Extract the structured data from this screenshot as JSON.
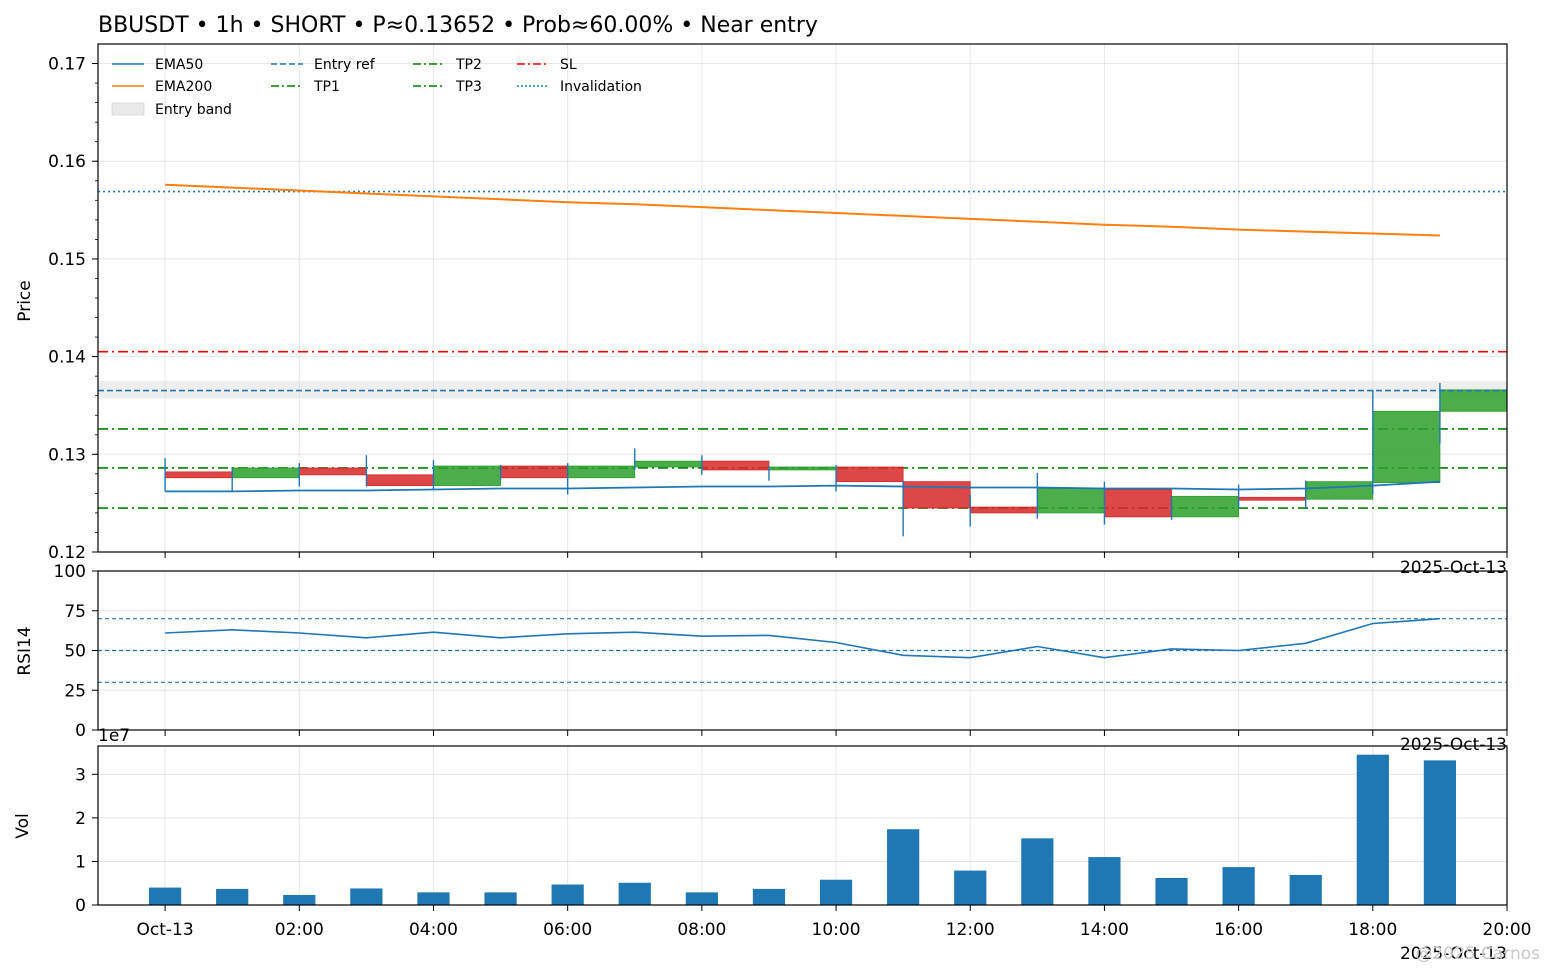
{
  "chart_data": {
    "type": "candlestick",
    "title": "BBUSDT • 1h • SHORT • P≈0.13652 • Prob≈60.00% • Near entry",
    "x": {
      "start": "2025-10-13T00:00",
      "end": "2025-10-13T20:00",
      "ticks": [
        "Oct-13",
        "02:00",
        "04:00",
        "06:00",
        "08:00",
        "10:00",
        "12:00",
        "14:00",
        "16:00",
        "18:00",
        "20:00"
      ],
      "date_label": "2025-Oct-13"
    },
    "price_panel": {
      "ylabel": "Price",
      "ylim": [
        0.12,
        0.172
      ],
      "yticks": [
        0.12,
        0.13,
        0.14,
        0.15,
        0.16,
        0.17
      ],
      "ytick_labels": [
        "0.12",
        "0.13",
        "0.14",
        "0.15",
        "0.16",
        "0.17"
      ],
      "candles": [
        {
          "time": "2025-10-13T00:00",
          "open": 0.1282,
          "high": 0.1296,
          "low": 0.1262,
          "close": 0.1276
        },
        {
          "time": "2025-10-13T01:00",
          "open": 0.1276,
          "high": 0.1287,
          "low": 0.1262,
          "close": 0.1286
        },
        {
          "time": "2025-10-13T02:00",
          "open": 0.1286,
          "high": 0.1291,
          "low": 0.1267,
          "close": 0.1279
        },
        {
          "time": "2025-10-13T03:00",
          "open": 0.1279,
          "high": 0.1299,
          "low": 0.1267,
          "close": 0.1268
        },
        {
          "time": "2025-10-13T04:00",
          "open": 0.1268,
          "high": 0.1294,
          "low": 0.1264,
          "close": 0.1288
        },
        {
          "time": "2025-10-13T05:00",
          "open": 0.1288,
          "high": 0.1289,
          "low": 0.1274,
          "close": 0.1276
        },
        {
          "time": "2025-10-13T06:00",
          "open": 0.1276,
          "high": 0.1291,
          "low": 0.1259,
          "close": 0.1288
        },
        {
          "time": "2025-10-13T07:00",
          "open": 0.1287,
          "high": 0.1306,
          "low": 0.1284,
          "close": 0.1293
        },
        {
          "time": "2025-10-13T08:00",
          "open": 0.1293,
          "high": 0.1299,
          "low": 0.1279,
          "close": 0.1284
        },
        {
          "time": "2025-10-13T09:00",
          "open": 0.1284,
          "high": 0.1288,
          "low": 0.1273,
          "close": 0.1287
        },
        {
          "time": "2025-10-13T10:00",
          "open": 0.1287,
          "high": 0.1289,
          "low": 0.1262,
          "close": 0.1272
        },
        {
          "time": "2025-10-13T11:00",
          "open": 0.1272,
          "high": 0.1273,
          "low": 0.1216,
          "close": 0.1245
        },
        {
          "time": "2025-10-13T12:00",
          "open": 0.1246,
          "high": 0.1259,
          "low": 0.1226,
          "close": 0.124
        },
        {
          "time": "2025-10-13T13:00",
          "open": 0.124,
          "high": 0.1281,
          "low": 0.1234,
          "close": 0.1265
        },
        {
          "time": "2025-10-13T14:00",
          "open": 0.1264,
          "high": 0.1272,
          "low": 0.1228,
          "close": 0.1236
        },
        {
          "time": "2025-10-13T15:00",
          "open": 0.1236,
          "high": 0.1257,
          "low": 0.1233,
          "close": 0.1257
        },
        {
          "time": "2025-10-13T16:00",
          "open": 0.1256,
          "high": 0.1269,
          "low": 0.1244,
          "close": 0.1253
        },
        {
          "time": "2025-10-13T17:00",
          "open": 0.1254,
          "high": 0.1273,
          "low": 0.1244,
          "close": 0.1272
        },
        {
          "time": "2025-10-13T18:00",
          "open": 0.1271,
          "high": 0.1366,
          "low": 0.1259,
          "close": 0.1344
        },
        {
          "time": "2025-10-13T19:00",
          "open": 0.1344,
          "high": 0.1373,
          "low": 0.1311,
          "close": 0.1366
        }
      ],
      "ema50": [
        0.1262,
        0.1262,
        0.1263,
        0.1263,
        0.1264,
        0.1265,
        0.1265,
        0.1266,
        0.1267,
        0.1267,
        0.1268,
        0.1267,
        0.1266,
        0.1266,
        0.1265,
        0.1265,
        0.1264,
        0.1265,
        0.1268,
        0.1272
      ],
      "ema200": [
        0.1576,
        0.1573,
        0.157,
        0.1567,
        0.1564,
        0.1561,
        0.1558,
        0.1556,
        0.1553,
        0.155,
        0.1547,
        0.1544,
        0.1541,
        0.1538,
        0.1535,
        0.1533,
        0.153,
        0.1528,
        0.1526,
        0.1524
      ],
      "levels": {
        "entry_ref": 0.13652,
        "entry_band": [
          0.1357,
          0.1375
        ],
        "sl": 0.1405,
        "tp1": 0.1245,
        "tp2": 0.1326,
        "tp3": 0.1286,
        "invalidation": 0.1569
      },
      "legend": {
        "placement": "upper-left",
        "entries": [
          "EMA50",
          "EMA200",
          "Entry band",
          "Entry ref",
          "TP1",
          "TP2",
          "TP3",
          "SL",
          "Invalidation"
        ]
      }
    },
    "rsi_panel": {
      "ylabel": "RSI14",
      "ylim": [
        0,
        100
      ],
      "yticks": [
        0,
        25,
        50,
        75,
        100
      ],
      "ytick_labels": [
        "0",
        "25",
        "50",
        "75",
        "100"
      ],
      "reference_lines": [
        70,
        50,
        30
      ],
      "values": [
        61,
        63,
        61,
        58,
        61.5,
        58,
        60.5,
        61.5,
        59,
        59.5,
        55,
        47,
        45.5,
        52.5,
        45.5,
        51,
        50,
        54.5,
        67,
        70
      ]
    },
    "volume_panel": {
      "ylabel": "Vol",
      "offset_label": "1e7",
      "ylim": [
        0,
        3.65
      ],
      "yticks": [
        0,
        1,
        2,
        3
      ],
      "ytick_labels": [
        "0",
        "1",
        "2",
        "3"
      ],
      "values": [
        0.4,
        0.37,
        0.23,
        0.38,
        0.29,
        0.29,
        0.47,
        0.51,
        0.29,
        0.37,
        0.58,
        1.74,
        0.79,
        1.53,
        1.1,
        0.62,
        0.87,
        0.69,
        3.45,
        3.32
      ]
    },
    "grid": true,
    "colors": {
      "up": "#2ca02c",
      "down": "#d62728",
      "ema50": "#1f77b4",
      "ema200": "#ff7f0e",
      "entry_ref": "#1f77b4",
      "tp": "#008000",
      "sl": "#ff0000",
      "invalidation": "#1f77b4",
      "volume": "#1f77b4",
      "rsi": "#1f77b4",
      "entry_band": "#d9d9d9"
    }
  },
  "watermark": "@2025 Carnos"
}
